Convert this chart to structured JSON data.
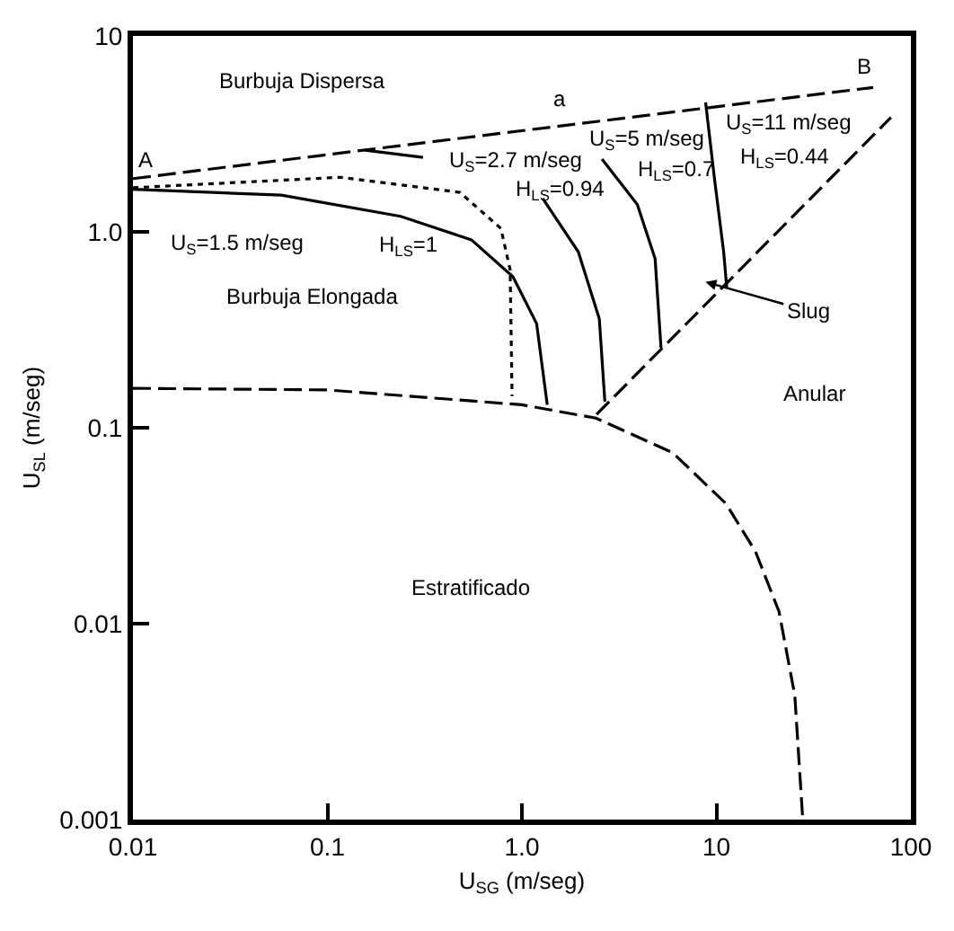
{
  "chart_data": {
    "type": "line",
    "xlabel": "U$_{SG}$ (m/seg)",
    "ylabel": "U$_{SL}$ (m/seg)",
    "log": "xy",
    "marker": "none",
    "xlim": [
      0.01,
      100
    ],
    "xticks": [
      0.01,
      0.1,
      {
        "value": 1,
        "label": "1.0"
      },
      10,
      100
    ],
    "ylim": [
      0.001,
      10
    ],
    "yticks": [
      0.001,
      0.01,
      0.1,
      {
        "value": 1,
        "label": "1.0"
      },
      10
    ],
    "series": [
      {
        "color": "#000000",
        "line_style": "dashed",
        "x": [
          0.01,
          64
        ],
        "values": [
          1.87,
          5.46
        ]
      },
      {
        "color": "#000000",
        "line_style": "dashed",
        "x": [
          2.42,
          79
        ],
        "values": [
          0.117,
          3.84
        ]
      },
      {
        "color": "#000000",
        "line_style": "dashed",
        "x": [
          0.01,
          0.1,
          1,
          2.4,
          5.97,
          11.2,
          15.9,
          21,
          25.3,
          27.8
        ],
        "values": [
          0.159,
          0.156,
          0.131,
          0.112,
          0.0745,
          0.041,
          0.0233,
          0.0115,
          0.0043,
          0.001
        ]
      },
      {
        "color": "#000000",
        "line_style": "dotted",
        "x": [
          0.01,
          0.117,
          0.48,
          0.78,
          0.87,
          0.89
        ],
        "values": [
          1.68,
          1.9,
          1.59,
          1.04,
          0.64,
          0.145
        ]
      },
      {
        "color": "#000000",
        "line_style": "solid",
        "x": [
          0.01,
          0.058,
          0.238,
          0.55,
          0.9,
          1.19,
          1.35
        ],
        "values": [
          1.65,
          1.54,
          1.2,
          0.91,
          0.59,
          0.34,
          0.131
        ]
      },
      {
        "color": "#000000",
        "line_style": "solid",
        "x": [
          0.156,
          0.31,
          0.7,
          1.28,
          1.95,
          2.5,
          2.67
        ],
        "values": [
          2.61,
          2.4,
          null,
          1.48,
          0.79,
          0.36,
          0.136
        ]
      },
      {
        "color": "#000000",
        "line_style": "solid",
        "x": [
          2.58,
          3.92,
          4.84,
          5.19
        ],
        "values": [
          2.35,
          1.38,
          0.73,
          0.256
        ]
      },
      {
        "color": "#000000",
        "line_style": "solid",
        "x": [
          8.8,
          9.8,
          10.9,
          11.3
        ],
        "values": [
          4.58,
          1.83,
          0.79,
          0.52
        ]
      }
    ],
    "annotations": [
      "Burbuja Dispersa",
      "Burbuja Elongada",
      "U$_{S}$=1.5 m/seg",
      "H$_{LS}$=1",
      "U$_{S}$=2.7 m/seg",
      "H$_{LS}$=0.94",
      "U$_{S}$=5 m/seg",
      "H$_{LS}$=0.7",
      "U$_{S}$=11 m/seg",
      "H$_{LS}$=0.44",
      "Anular",
      "Estratificado",
      "Slug",
      "a",
      "A",
      "B"
    ]
  }
}
